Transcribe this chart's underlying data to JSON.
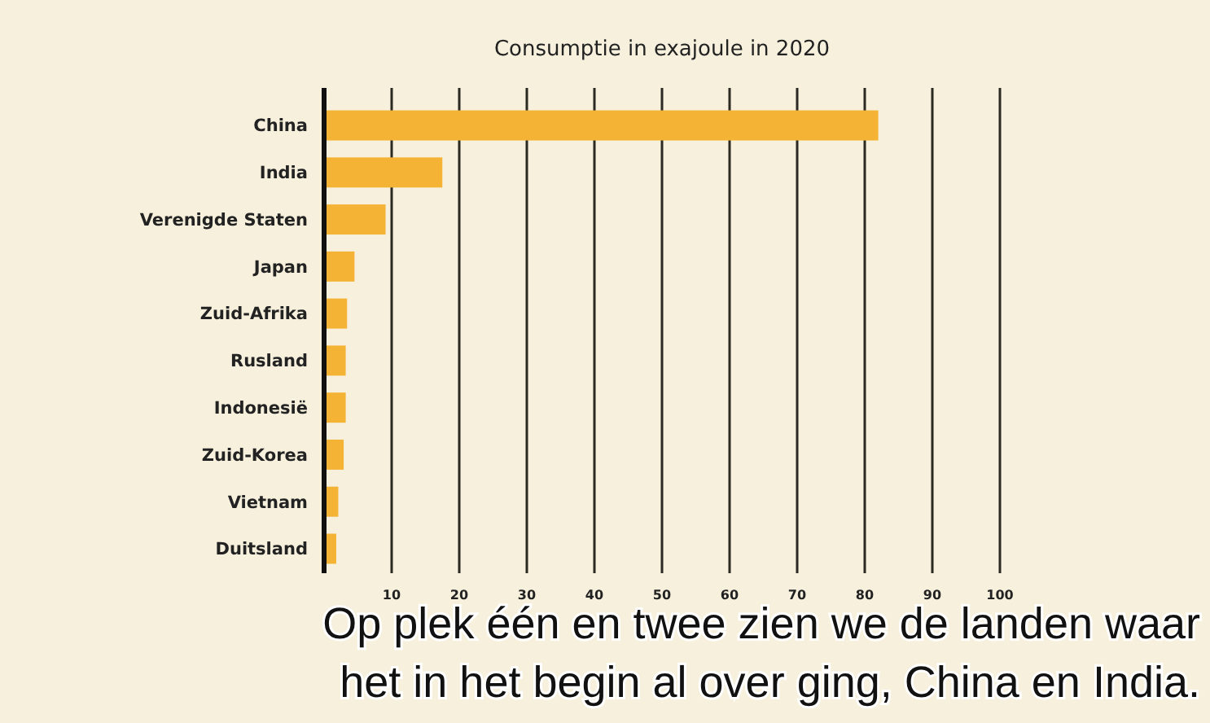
{
  "chart_data": {
    "type": "bar",
    "orientation": "horizontal",
    "title": "Consumptie in exajoule in 2020",
    "categories": [
      "China",
      "India",
      "Verenigde Staten",
      "Japan",
      "Zuid-Afrika",
      "Rusland",
      "Indonesië",
      "Zuid-Korea",
      "Vietnam",
      "Duitsland"
    ],
    "values": [
      82,
      17.5,
      9.1,
      4.5,
      3.4,
      3.2,
      3.2,
      2.9,
      2.1,
      1.8
    ],
    "color": "#f5b335",
    "xlim": [
      0,
      100
    ],
    "xticks": [
      {
        "value": 0,
        "label": null
      },
      10,
      20,
      30,
      40,
      50,
      60,
      70,
      80,
      90,
      100
    ],
    "grid": "x",
    "annotations": [
      "Op plek één en twee zien we de landen waar",
      "het in het begin al over ging, China en India."
    ]
  }
}
